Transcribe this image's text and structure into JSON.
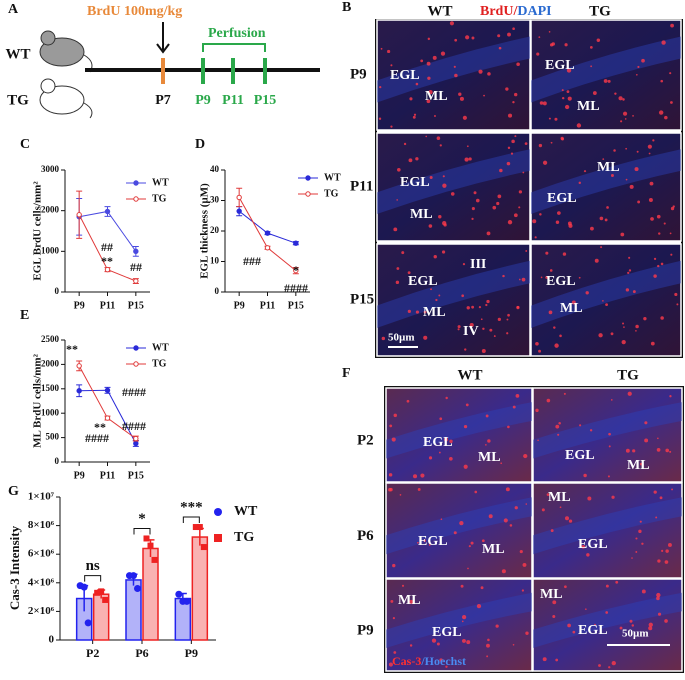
{
  "panel_a": {
    "label": "A",
    "dose": "BrdU 100mg/kg",
    "perfusion": "Perfusion",
    "mice": [
      "WT",
      "TG"
    ],
    "days": [
      "P7",
      "P9",
      "P11",
      "P15"
    ]
  },
  "panel_b": {
    "label": "B",
    "columns": [
      "WT",
      "TG"
    ],
    "stain": [
      "BrdU/",
      "DAPI"
    ],
    "scale_bar": "50µm",
    "rows": [
      {
        "label": "P9",
        "wt": [
          "EGL",
          "ML"
        ],
        "tg": [
          "EGL",
          "ML"
        ]
      },
      {
        "label": "P11",
        "wt": [
          "EGL",
          "ML"
        ],
        "tg": [
          "ML",
          "EGL"
        ]
      },
      {
        "label": "P15",
        "wt": [
          "EGL",
          "III",
          "ML",
          "IV"
        ],
        "tg": [
          "EGL",
          "ML"
        ]
      }
    ]
  },
  "panel_f": {
    "label": "F",
    "columns": [
      "WT",
      "TG"
    ],
    "stain": [
      "Cas-3",
      "/Hoechst"
    ],
    "scale_bar": "50µm",
    "rows": [
      {
        "label": "P2",
        "wt": [
          "EGL",
          "ML"
        ],
        "tg": [
          "EGL",
          "ML"
        ]
      },
      {
        "label": "P6",
        "wt": [
          "EGL",
          "ML"
        ],
        "tg": [
          "ML",
          "EGL"
        ]
      },
      {
        "label": "P9",
        "wt": [
          "ML",
          "EGL"
        ],
        "tg": [
          "ML",
          "EGL"
        ]
      }
    ]
  },
  "chart_data": [
    {
      "type": "line",
      "label": "C",
      "ylabel": "EGL BrdU cells/mm²",
      "categories": [
        "P9",
        "P11",
        "P15"
      ],
      "series": [
        {
          "name": "WT",
          "color": "#4a4ae0",
          "values": [
            1850,
            1980,
            1000
          ],
          "errors": [
            450,
            120,
            120
          ]
        },
        {
          "name": "TG",
          "color": "#e03a3a",
          "values": [
            1900,
            550,
            270
          ],
          "errors": [
            580,
            50,
            60
          ]
        }
      ],
      "ylim": [
        0,
        3000
      ],
      "yticks": [
        0,
        1000,
        2000,
        3000
      ],
      "annotations": [
        {
          "text": "##",
          "category": "P11"
        },
        {
          "text": "**",
          "category": "P11"
        },
        {
          "text": "##",
          "category": "P15"
        }
      ]
    },
    {
      "type": "line",
      "label": "D",
      "ylabel": "EGL thickness (µM)",
      "categories": [
        "P9",
        "P11",
        "P15"
      ],
      "series": [
        {
          "name": "WT",
          "color": "#2a2ad8",
          "values": [
            26.5,
            19.3,
            16
          ],
          "errors": [
            1.5,
            0.5,
            0.5
          ]
        },
        {
          "name": "TG",
          "color": "#e03a3a",
          "values": [
            31,
            14.5,
            7
          ],
          "errors": [
            3,
            0.5,
            1
          ]
        }
      ],
      "ylim": [
        0,
        40
      ],
      "yticks": [
        0,
        10,
        20,
        30,
        40
      ],
      "annotations": [
        {
          "text": "###",
          "category": "P11"
        },
        {
          "text": "*",
          "category": "P15"
        },
        {
          "text": "####",
          "category": "P15"
        }
      ]
    },
    {
      "type": "line",
      "label": "E",
      "ylabel": "ML BrdU cells/mm²",
      "categories": [
        "P9",
        "P11",
        "P15"
      ],
      "series": [
        {
          "name": "WT",
          "color": "#2a2ad8",
          "values": [
            1460,
            1470,
            380
          ],
          "errors": [
            120,
            60,
            60
          ]
        },
        {
          "name": "TG",
          "color": "#e03a3a",
          "values": [
            1970,
            900,
            480
          ],
          "errors": [
            100,
            40,
            50
          ]
        }
      ],
      "ylim": [
        0,
        2500
      ],
      "yticks": [
        0,
        500,
        1000,
        1500,
        2000,
        2500
      ],
      "annotations": [
        {
          "text": "**",
          "category": "P9"
        },
        {
          "text": "**",
          "category": "P11"
        },
        {
          "text": "####",
          "category": "P11"
        },
        {
          "text": "####",
          "category": "P15"
        },
        {
          "text": "####",
          "category": "P15"
        }
      ]
    },
    {
      "type": "bar",
      "label": "G",
      "ylabel": "Cas-3 Intensity",
      "categories": [
        "P2",
        "P6",
        "P9"
      ],
      "series": [
        {
          "name": "WT",
          "color": "#2222ee",
          "values": [
            2900000,
            4200000,
            2900000
          ],
          "errors": [
            900000,
            400000,
            350000
          ],
          "points": [
            [
              3800000,
              3700000,
              1200000
            ],
            [
              4500000,
              4500000,
              3600000
            ],
            [
              3200000,
              2700000,
              2700000
            ]
          ]
        },
        {
          "name": "TG",
          "color": "#ee2222",
          "values": [
            3200000,
            6400000,
            7200000
          ],
          "errors": [
            300000,
            600000,
            600000
          ],
          "points": [
            [
              3300000,
              3400000,
              2800000
            ],
            [
              7100000,
              6600000,
              5600000
            ],
            [
              7900000,
              7900000,
              6500000
            ]
          ]
        }
      ],
      "ylim": [
        0,
        10000000
      ],
      "yticks": [
        0,
        {
          "value": 2000000,
          "label": "2×10⁶"
        },
        {
          "value": 4000000,
          "label": "4×10⁶"
        },
        {
          "value": 6000000,
          "label": "6×10⁶"
        },
        {
          "value": 8000000,
          "label": "8×10⁶"
        },
        {
          "value": 10000000,
          "label": "1×10⁷"
        }
      ],
      "significance": [
        "ns",
        "*",
        "***"
      ]
    }
  ]
}
